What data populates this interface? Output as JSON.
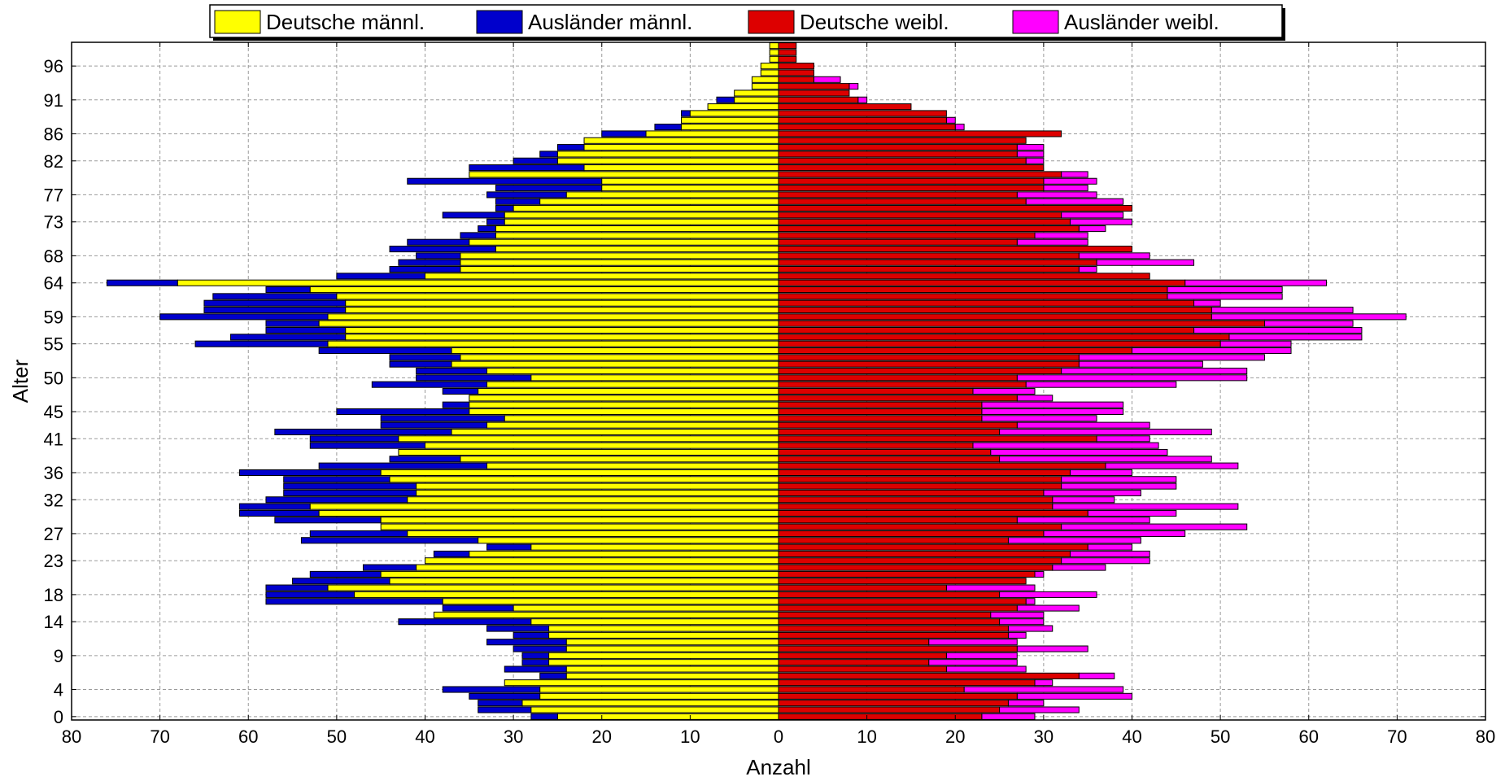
{
  "chart_data": {
    "type": "bar",
    "orientation": "horizontal-population-pyramid",
    "xlabel": "Anzahl",
    "ylabel": "Alter",
    "xlim": [
      -80,
      80
    ],
    "ylim": [
      0,
      99
    ],
    "x_ticks": [
      -80,
      -70,
      -60,
      -50,
      -40,
      -30,
      -20,
      -10,
      0,
      10,
      20,
      30,
      40,
      50,
      60,
      70,
      80
    ],
    "x_tick_labels": [
      "80",
      "70",
      "60",
      "50",
      "40",
      "30",
      "20",
      "10",
      "0",
      "10",
      "20",
      "30",
      "40",
      "50",
      "60",
      "70",
      "80"
    ],
    "y_tick_labels": [
      0,
      4,
      9,
      14,
      18,
      23,
      27,
      32,
      36,
      41,
      45,
      50,
      55,
      59,
      64,
      68,
      73,
      77,
      82,
      86,
      91,
      96
    ],
    "grid": true,
    "legend_position": "top",
    "colors": {
      "deutsche_maennl": "#ffff00",
      "auslaender_maennl": "#0000cc",
      "deutsche_weibl": "#dd0000",
      "auslaender_weibl": "#ff00ff"
    },
    "series": [
      {
        "key": "deutsche_maennl",
        "name": "Deutsche männl.",
        "side": "left",
        "stack": "base",
        "color": "#ffff00"
      },
      {
        "key": "auslaender_maennl",
        "name": "Ausländer männl.",
        "side": "left",
        "stack": "outer",
        "color": "#0000cc"
      },
      {
        "key": "deutsche_weibl",
        "name": "Deutsche weibl.",
        "side": "right",
        "stack": "base",
        "color": "#dd0000"
      },
      {
        "key": "auslaender_weibl",
        "name": "Ausländer weibl.",
        "side": "right",
        "stack": "outer",
        "color": "#ff00ff"
      }
    ],
    "ages": [
      0,
      1,
      2,
      3,
      4,
      5,
      6,
      7,
      8,
      9,
      10,
      11,
      12,
      13,
      14,
      15,
      16,
      17,
      18,
      19,
      20,
      21,
      22,
      23,
      24,
      25,
      26,
      27,
      28,
      29,
      30,
      31,
      32,
      33,
      34,
      35,
      36,
      37,
      38,
      39,
      40,
      41,
      42,
      43,
      44,
      45,
      46,
      47,
      48,
      49,
      50,
      51,
      52,
      53,
      54,
      55,
      56,
      57,
      58,
      59,
      60,
      61,
      62,
      63,
      64,
      65,
      66,
      67,
      68,
      69,
      70,
      71,
      72,
      73,
      74,
      75,
      76,
      77,
      78,
      79,
      80,
      81,
      82,
      83,
      84,
      85,
      86,
      87,
      88,
      89,
      90,
      91,
      92,
      93,
      94,
      95,
      96,
      97,
      98,
      99
    ],
    "deutsche_maennl": [
      25,
      28,
      29,
      27,
      27,
      31,
      24,
      24,
      26,
      26,
      24,
      24,
      26,
      26,
      28,
      39,
      30,
      38,
      48,
      51,
      44,
      45,
      41,
      40,
      35,
      28,
      34,
      42,
      45,
      45,
      52,
      53,
      42,
      41,
      41,
      44,
      45,
      33,
      36,
      43,
      40,
      43,
      37,
      33,
      31,
      35,
      35,
      35,
      34,
      33,
      28,
      33,
      37,
      36,
      37,
      51,
      49,
      49,
      52,
      51,
      49,
      49,
      50,
      53,
      68,
      40,
      36,
      36,
      36,
      32,
      35,
      32,
      32,
      31,
      31,
      30,
      27,
      24,
      20,
      20,
      35,
      22,
      25,
      25,
      22,
      22,
      15,
      11,
      11,
      10,
      8,
      5,
      5,
      3,
      3,
      2,
      2,
      1,
      1,
      1
    ],
    "auslaender_maennl": [
      28,
      34,
      34,
      35,
      38,
      31,
      27,
      31,
      29,
      29,
      30,
      33,
      30,
      33,
      43,
      38,
      38,
      58,
      58,
      58,
      55,
      53,
      47,
      39,
      39,
      33,
      54,
      53,
      45,
      57,
      61,
      61,
      58,
      56,
      56,
      56,
      61,
      52,
      44,
      39,
      53,
      53,
      57,
      45,
      45,
      50,
      38,
      32,
      38,
      46,
      41,
      41,
      44,
      44,
      52,
      66,
      62,
      58,
      58,
      70,
      65,
      65,
      64,
      58,
      76,
      50,
      44,
      43,
      41,
      44,
      42,
      36,
      34,
      33,
      38,
      32,
      32,
      33,
      32,
      42,
      33,
      35,
      30,
      27,
      25,
      20,
      20,
      14,
      11,
      11,
      8,
      7,
      5,
      3,
      1,
      1,
      1,
      1,
      1,
      1
    ],
    "deutsche_weibl": [
      23,
      25,
      26,
      27,
      21,
      29,
      34,
      19,
      17,
      19,
      27,
      17,
      26,
      26,
      25,
      24,
      27,
      28,
      25,
      19,
      28,
      29,
      31,
      32,
      33,
      35,
      26,
      30,
      32,
      27,
      35,
      31,
      31,
      30,
      32,
      32,
      33,
      37,
      25,
      24,
      22,
      36,
      25,
      27,
      23,
      23,
      23,
      27,
      22,
      28,
      27,
      32,
      34,
      34,
      40,
      50,
      51,
      47,
      55,
      49,
      49,
      47,
      44,
      44,
      46,
      42,
      34,
      36,
      34,
      40,
      27,
      29,
      34,
      33,
      32,
      40,
      28,
      27,
      30,
      30,
      32,
      30,
      28,
      27,
      27,
      28,
      32,
      20,
      19,
      19,
      15,
      9,
      8,
      8,
      4,
      4,
      4,
      2,
      2,
      2
    ],
    "auslaender_weibl": [
      29,
      34,
      30,
      40,
      39,
      31,
      38,
      28,
      27,
      27,
      35,
      27,
      28,
      31,
      30,
      30,
      34,
      29,
      36,
      29,
      23,
      30,
      37,
      42,
      42,
      40,
      41,
      46,
      53,
      42,
      45,
      52,
      38,
      41,
      45,
      45,
      40,
      52,
      49,
      44,
      43,
      42,
      49,
      42,
      36,
      39,
      39,
      31,
      29,
      45,
      53,
      53,
      48,
      55,
      58,
      58,
      66,
      66,
      65,
      71,
      65,
      50,
      57,
      57,
      62,
      39,
      36,
      47,
      42,
      36,
      35,
      35,
      37,
      40,
      39,
      39,
      39,
      36,
      35,
      36,
      35,
      30,
      30,
      30,
      30,
      24,
      25,
      21,
      20,
      14,
      14,
      10,
      8,
      9,
      7,
      3,
      2,
      1,
      2,
      2
    ]
  }
}
